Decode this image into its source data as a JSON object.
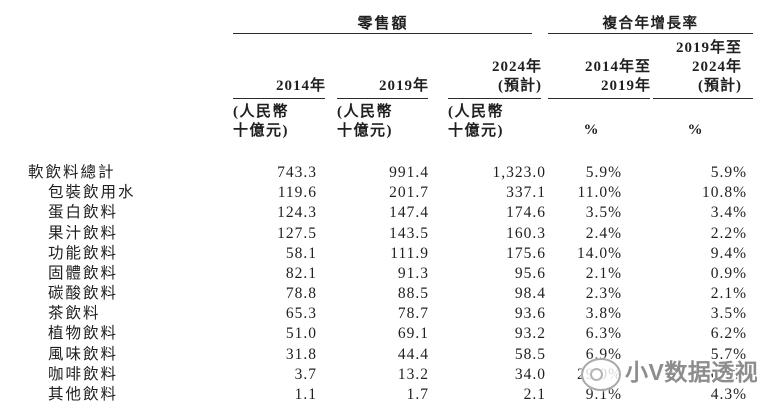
{
  "table": {
    "group_headers": [
      {
        "label": "零售額"
      },
      {
        "label": "複合年增長率"
      }
    ],
    "columns": [
      {
        "year_lines": [
          "2014年"
        ],
        "unit_lines": [
          "(人民幣",
          "十億元)"
        ]
      },
      {
        "year_lines": [
          "2019年"
        ],
        "unit_lines": [
          "(人民幣",
          "十億元)"
        ]
      },
      {
        "year_lines": [
          "2024年",
          "(預計)"
        ],
        "unit_lines": [
          "(人民幣",
          "十億元)"
        ]
      },
      {
        "year_lines": [
          "2014年至",
          "2019年"
        ],
        "unit_lines": [
          "%"
        ]
      },
      {
        "year_lines": [
          "2019年至",
          "2024年",
          "(預計)"
        ],
        "unit_lines": [
          "%"
        ]
      }
    ],
    "rows": [
      {
        "label": "軟飲料總計",
        "indent": false,
        "values": [
          "743.3",
          "991.4",
          "1,323.0",
          "5.9%",
          "5.9%"
        ]
      },
      {
        "label": "包裝飲用水",
        "indent": true,
        "values": [
          "119.6",
          "201.7",
          "337.1",
          "11.0%",
          "10.8%"
        ]
      },
      {
        "label": "蛋白飲料",
        "indent": true,
        "values": [
          "124.3",
          "147.4",
          "174.6",
          "3.5%",
          "3.4%"
        ]
      },
      {
        "label": "果汁飲料",
        "indent": true,
        "values": [
          "127.5",
          "143.5",
          "160.3",
          "2.4%",
          "2.2%"
        ]
      },
      {
        "label": "功能飲料",
        "indent": true,
        "values": [
          "58.1",
          "111.9",
          "175.6",
          "14.0%",
          "9.4%"
        ]
      },
      {
        "label": "固體飲料",
        "indent": true,
        "values": [
          "82.1",
          "91.3",
          "95.6",
          "2.1%",
          "0.9%"
        ]
      },
      {
        "label": "碳酸飲料",
        "indent": true,
        "values": [
          "78.8",
          "88.5",
          "98.4",
          "2.3%",
          "2.1%"
        ]
      },
      {
        "label": "茶飲料",
        "indent": true,
        "values": [
          "65.3",
          "78.7",
          "93.6",
          "3.8%",
          "3.5%"
        ]
      },
      {
        "label": "植物飲料",
        "indent": true,
        "values": [
          "51.0",
          "69.1",
          "93.2",
          "6.3%",
          "6.2%"
        ]
      },
      {
        "label": "風味飲料",
        "indent": true,
        "values": [
          "31.8",
          "44.4",
          "58.5",
          "6.9%",
          "5.7%"
        ]
      },
      {
        "label": "咖啡飲料",
        "indent": true,
        "values": [
          "3.7",
          "13.2",
          "34.0",
          "29.0%",
          "20.8%"
        ]
      },
      {
        "label": "其他飲料",
        "indent": true,
        "values": [
          "1.1",
          "1.7",
          "2.1",
          "9.1%",
          "4.3%"
        ]
      }
    ]
  },
  "watermark": {
    "text": "小V数据透视"
  },
  "colors": {
    "text": "#1f1f1f",
    "rule": "#2b2b2b",
    "watermark": "#8d8d8d"
  }
}
